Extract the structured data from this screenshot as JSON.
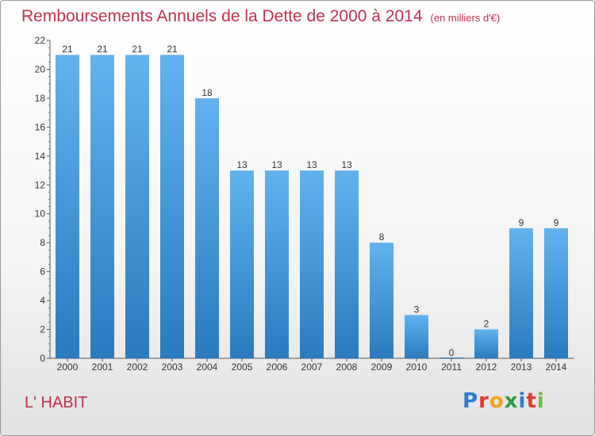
{
  "title": "Remboursements Annuels de la Dette de 2000 à 2014",
  "unit": "(en milliers d'€)",
  "commune": "L' HABIT",
  "logo": [
    "P",
    "r",
    "o",
    "x",
    "i",
    "t",
    "i"
  ],
  "colors": {
    "bar_light": "#62b2ee",
    "bar_dark": "#2a7bbe",
    "title": "#c0304d"
  },
  "chart_data": {
    "type": "bar",
    "categories": [
      "2000",
      "2001",
      "2002",
      "2003",
      "2004",
      "2005",
      "2006",
      "2007",
      "2008",
      "2009",
      "2010",
      "2011",
      "2012",
      "2013",
      "2014"
    ],
    "values": [
      21,
      21,
      21,
      21,
      18,
      13,
      13,
      13,
      13,
      8,
      3,
      0,
      2,
      9,
      9
    ],
    "ylim": [
      0,
      22
    ],
    "yticks": [
      0,
      2,
      4,
      6,
      8,
      10,
      12,
      14,
      16,
      18,
      20,
      22
    ],
    "grid": false,
    "legend": "none"
  }
}
